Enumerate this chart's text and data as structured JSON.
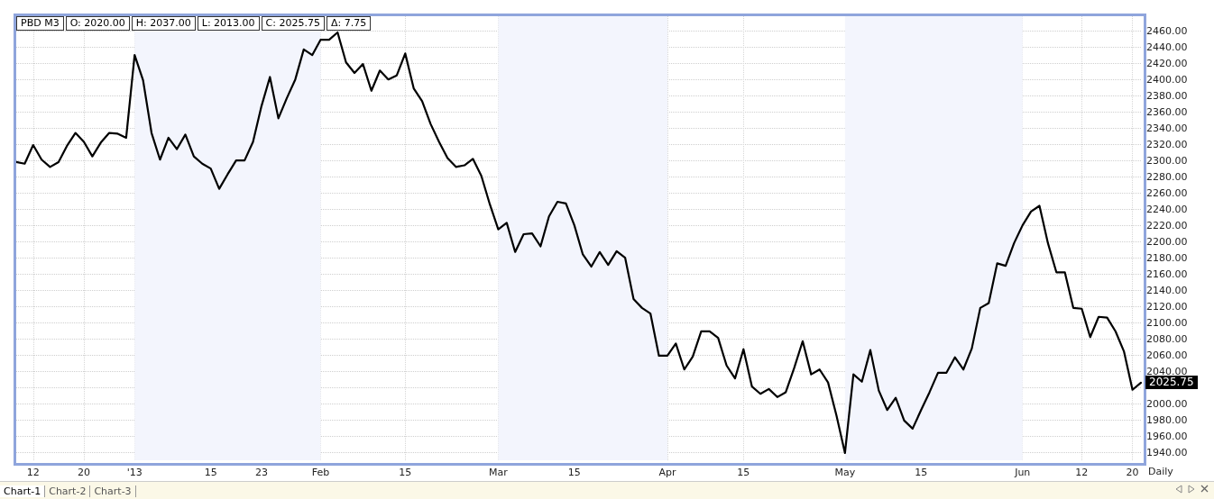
{
  "chart_data": {
    "type": "line",
    "categories": [
      null,
      null,
      "12",
      null,
      null,
      null,
      null,
      null,
      "20",
      null,
      null,
      null,
      null,
      null,
      "'13",
      null,
      null,
      null,
      null,
      null,
      null,
      null,
      null,
      "15",
      null,
      null,
      null,
      null,
      null,
      "23",
      null,
      null,
      null,
      null,
      null,
      null,
      "Feb",
      null,
      null,
      null,
      null,
      null,
      null,
      null,
      null,
      null,
      "15",
      null,
      null,
      null,
      null,
      null,
      null,
      null,
      null,
      null,
      null,
      "Mar",
      null,
      null,
      null,
      null,
      null,
      null,
      null,
      null,
      "15",
      null,
      null,
      null,
      null,
      null,
      null,
      null,
      null,
      null,
      null,
      "Apr",
      null,
      null,
      null,
      null,
      null,
      null,
      null,
      null,
      "15",
      null,
      null,
      null,
      null,
      null,
      null,
      null,
      null,
      null,
      null,
      null,
      "May",
      null,
      null,
      null,
      null,
      null,
      null,
      null,
      null,
      "15",
      null,
      null,
      null,
      null,
      null,
      null,
      null,
      null,
      null,
      null,
      null,
      "Jun",
      null,
      null,
      null,
      null,
      null,
      null,
      "12",
      null,
      null,
      null,
      null,
      null,
      "20",
      null
    ],
    "series": [
      {
        "color": "#000000",
        "values": [
          2298,
          2296,
          2319,
          2301,
          2292,
          2298,
          2318,
          2334,
          2323,
          2305,
          2322,
          2334,
          2333,
          2328,
          2430,
          2399,
          2334,
          2301,
          2328,
          2314,
          2332,
          2305,
          2296,
          2290,
          2265,
          2283,
          2300,
          2300,
          2323,
          2367,
          2403,
          2352,
          2377,
          2400,
          2437,
          2430,
          2449,
          2449,
          2458,
          2421,
          2408,
          2419,
          2386,
          2411,
          2400,
          2405,
          2432,
          2389,
          2373,
          2345,
          2323,
          2303,
          2292,
          2294,
          2302,
          2281,
          2246,
          2215,
          2223,
          2187,
          2209,
          2210,
          2194,
          2231,
          2249,
          2247,
          2220,
          2184,
          2169,
          2187,
          2171,
          2188,
          2180,
          2129,
          2118,
          2111,
          2059,
          2059,
          2074,
          2042,
          2058,
          2089,
          2089,
          2081,
          2047,
          2031,
          2067,
          2021,
          2012,
          2018,
          2008,
          2014,
          2044,
          2077,
          2036,
          2042,
          2026,
          1985,
          1939,
          2036,
          2027,
          2066,
          2016,
          1992,
          2007,
          1979,
          1969,
          1992,
          2014,
          2038,
          2038,
          2057,
          2042,
          2068,
          2118,
          2124,
          2173,
          2170,
          2198,
          2220,
          2237,
          2244,
          2198,
          2162,
          2162,
          2118,
          2117,
          2082,
          2107,
          2106,
          2089,
          2064,
          2017,
          2025.75
        ]
      }
    ],
    "ylim": [
      1930,
      2478
    ],
    "yticks": [
      {
        "value": 1940,
        "label": "1940.00"
      },
      {
        "value": 1960,
        "label": "1960.00"
      },
      {
        "value": 1980,
        "label": "1980.00"
      },
      {
        "value": 2000,
        "label": "2000.00"
      },
      {
        "value": 2020,
        "label": null
      },
      {
        "value": 2040,
        "label": "2040.00"
      },
      {
        "value": 2060,
        "label": "2060.00"
      },
      {
        "value": 2080,
        "label": "2080.00"
      },
      {
        "value": 2100,
        "label": "2100.00"
      },
      {
        "value": 2120,
        "label": "2120.00"
      },
      {
        "value": 2140,
        "label": "2140.00"
      },
      {
        "value": 2160,
        "label": "2160.00"
      },
      {
        "value": 2180,
        "label": "2180.00"
      },
      {
        "value": 2200,
        "label": "2200.00"
      },
      {
        "value": 2220,
        "label": "2220.00"
      },
      {
        "value": 2240,
        "label": "2240.00"
      },
      {
        "value": 2260,
        "label": "2260.00"
      },
      {
        "value": 2280,
        "label": "2280.00"
      },
      {
        "value": 2300,
        "label": "2300.00"
      },
      {
        "value": 2320,
        "label": "2320.00"
      },
      {
        "value": 2340,
        "label": "2340.00"
      },
      {
        "value": 2360,
        "label": "2360.00"
      },
      {
        "value": 2380,
        "label": "2380.00"
      },
      {
        "value": 2400,
        "label": "2400.00"
      },
      {
        "value": 2420,
        "label": "2420.00"
      },
      {
        "value": 2440,
        "label": "2440.00"
      },
      {
        "value": 2460,
        "label": "2460.00"
      }
    ],
    "bands": [
      {
        "axis": "x",
        "from": "'13",
        "to": "Feb",
        "color": "#f3f5fd"
      },
      {
        "axis": "x",
        "from": "Mar",
        "to": "Apr",
        "color": "#f3f5fd"
      },
      {
        "axis": "x",
        "from": "May",
        "to": "Jun",
        "color": "#f3f5fd"
      }
    ],
    "annotations": [
      "PBD M3",
      "O: 2020.00",
      "H: 2037.00",
      "L: 2013.00",
      "C: 2025.75",
      "Δ: 7.75",
      "2025.75",
      "Daily",
      "Chart-1",
      "Chart-2",
      "Chart-3"
    ],
    "grid": true,
    "marker": "none",
    "line_style": "solid"
  }
}
